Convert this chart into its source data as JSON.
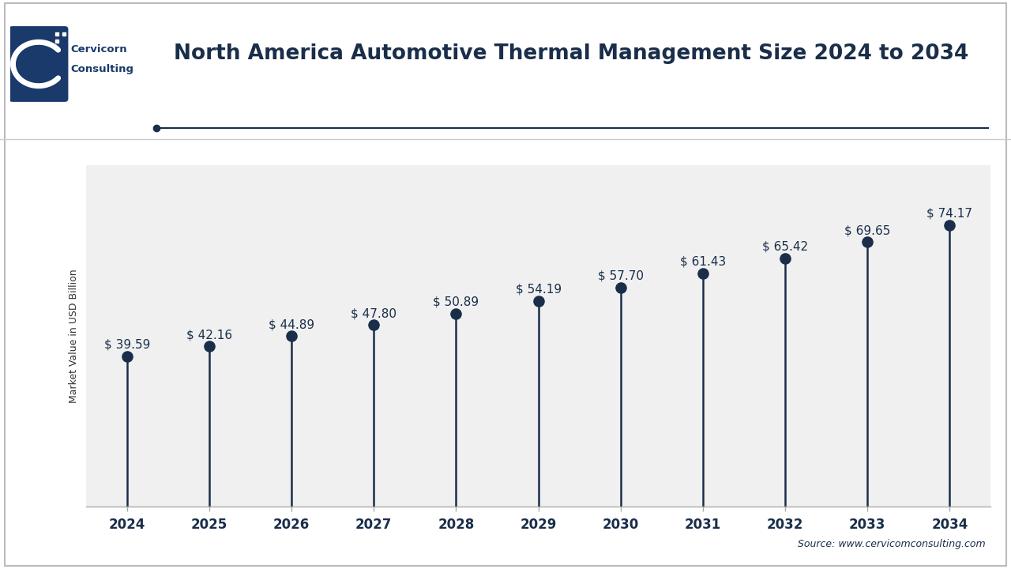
{
  "title": "North America Automotive Thermal Management Size 2024 to 2034",
  "ylabel": "Market Value in USD Billion",
  "source": "Source: www.cervicomconsulting.com",
  "years": [
    2024,
    2025,
    2026,
    2027,
    2028,
    2029,
    2030,
    2031,
    2032,
    2033,
    2034
  ],
  "values": [
    39.59,
    42.16,
    44.89,
    47.8,
    50.89,
    54.19,
    57.7,
    61.43,
    65.42,
    69.65,
    74.17
  ],
  "labels": [
    "$ 39.59",
    "$ 42.16",
    "$ 44.89",
    "$ 47.80",
    "$ 50.89",
    "$ 54.19",
    "$ 57.70",
    "$ 61.43",
    "$ 65.42",
    "$ 69.65",
    "$ 74.17"
  ],
  "line_color": "#1a2e4a",
  "dot_color": "#1a2e4a",
  "background_color": "#ffffff",
  "plot_bg_color": "#f0f0f0",
  "title_color": "#1a2e4a",
  "label_color": "#1a2e4a",
  "grid_color": "#ffffff",
  "logo_box_color": "#1a3a6b",
  "tick_color": "#1a2e4a",
  "ylim": [
    0,
    90
  ],
  "title_fontsize": 19,
  "label_fontsize": 11,
  "ylabel_fontsize": 9,
  "tick_fontsize": 12,
  "logo_company1": "Cervicorn",
  "logo_company2": "Consulting"
}
